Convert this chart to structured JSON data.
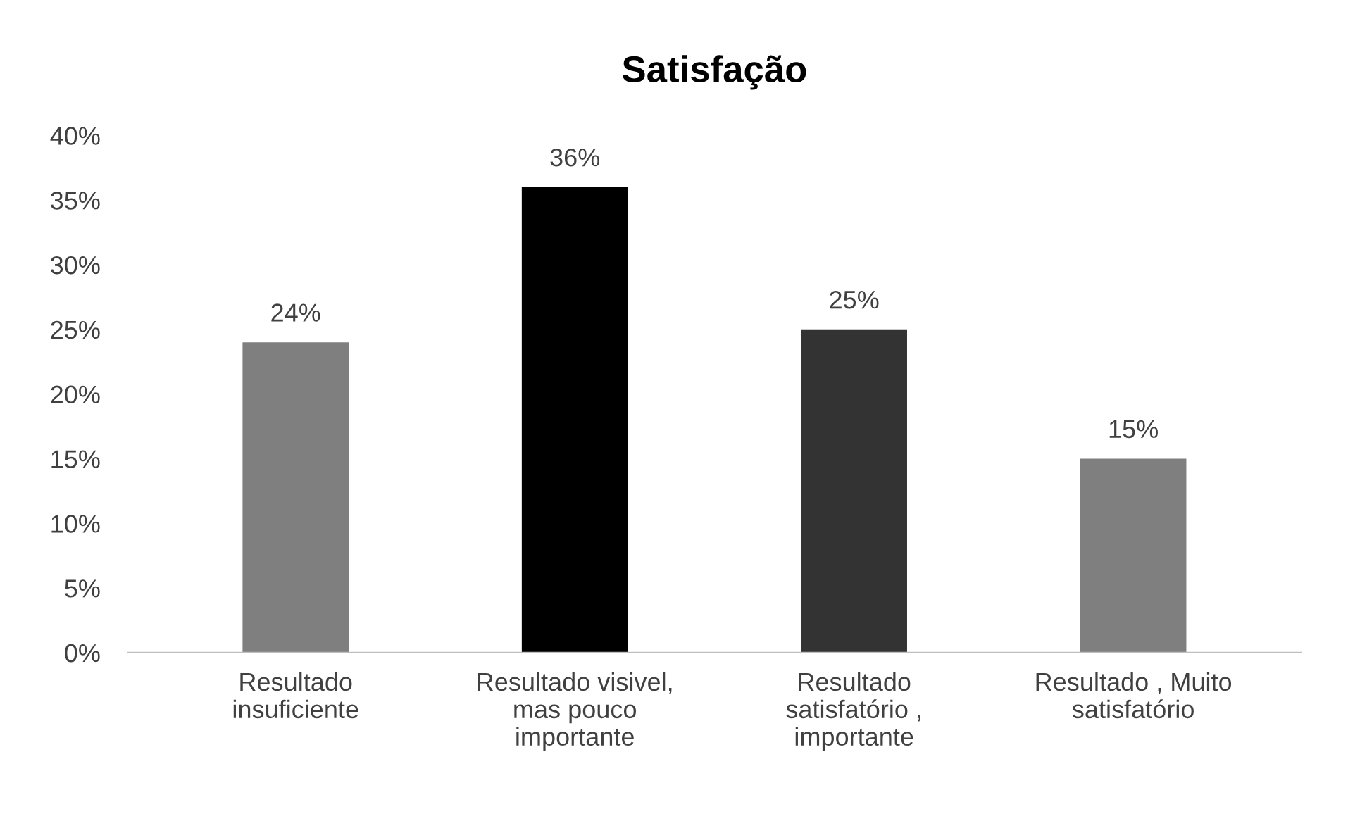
{
  "chart_data": {
    "type": "bar",
    "title": "Satisfação",
    "categories": [
      "Resultado insuficiente",
      "Resultado visivel, mas pouco importante",
      "Resultado satisfatório , importante",
      "Resultado , Muito satisfatório"
    ],
    "values": [
      24,
      36,
      25,
      15
    ],
    "colors": [
      "#7f7f7f",
      "#000000",
      "#333333",
      "#7f7f7f"
    ],
    "value_labels": [
      "24%",
      "36%",
      "25%",
      "15%"
    ],
    "ylim": [
      0,
      40
    ],
    "yticks": [
      {
        "value": 0,
        "label": "0%"
      },
      {
        "value": 5,
        "label": "5%"
      },
      {
        "value": 10,
        "label": "10%"
      },
      {
        "value": 15,
        "label": "15%"
      },
      {
        "value": 20,
        "label": "20%"
      },
      {
        "value": 25,
        "label": "25%"
      },
      {
        "value": 30,
        "label": "30%"
      },
      {
        "value": 35,
        "label": "35%"
      },
      {
        "value": 40,
        "label": "40%"
      }
    ],
    "grid": false
  }
}
